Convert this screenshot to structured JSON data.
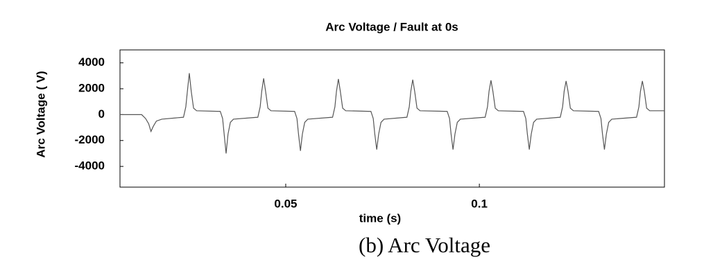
{
  "chart_data": {
    "type": "line",
    "title": "Arc Voltage / Fault at 0s",
    "xlabel": "time (s)",
    "ylabel": "Arc Voltage ( V)",
    "x": [
      0.0072,
      0.0128,
      0.0138,
      0.0146,
      0.0152,
      0.0158,
      0.0166,
      0.018,
      0.0236,
      0.0242,
      0.0246,
      0.0251,
      0.0256,
      0.0262,
      0.027,
      0.0331,
      0.0337,
      0.0341,
      0.0346,
      0.0351,
      0.0357,
      0.0365,
      0.0428,
      0.0434,
      0.0438,
      0.0443,
      0.0448,
      0.0454,
      0.0462,
      0.0523,
      0.0529,
      0.0533,
      0.0538,
      0.0543,
      0.0549,
      0.0557,
      0.0621,
      0.0627,
      0.0631,
      0.0636,
      0.0641,
      0.0647,
      0.0655,
      0.072,
      0.0726,
      0.073,
      0.0735,
      0.074,
      0.0746,
      0.0754,
      0.0813,
      0.0819,
      0.0823,
      0.0828,
      0.0833,
      0.0839,
      0.0847,
      0.0917,
      0.0923,
      0.0927,
      0.0932,
      0.0937,
      0.0943,
      0.0951,
      0.1015,
      0.1021,
      0.1025,
      0.103,
      0.1035,
      0.1041,
      0.1049,
      0.1114,
      0.112,
      0.1124,
      0.1129,
      0.1134,
      0.114,
      0.1148,
      0.1209,
      0.1215,
      0.1219,
      0.1224,
      0.1229,
      0.1235,
      0.1243,
      0.1308,
      0.1314,
      0.1318,
      0.1323,
      0.1328,
      0.1334,
      0.1342,
      0.1406,
      0.1412,
      0.1416,
      0.1421,
      0.1426,
      0.1432,
      0.144,
      0.1478
    ],
    "values": [
      0,
      0,
      -300,
      -700,
      -1300,
      -900,
      -500,
      -350,
      -200,
      600,
      1800,
      3200,
      1800,
      500,
      300,
      250,
      -300,
      -1500,
      -3000,
      -1500,
      -600,
      -350,
      -200,
      600,
      1800,
      2800,
      1800,
      500,
      300,
      250,
      -300,
      -1500,
      -2800,
      -1500,
      -600,
      -350,
      -200,
      600,
      1800,
      2750,
      1800,
      500,
      300,
      250,
      -300,
      -1500,
      -2700,
      -1500,
      -600,
      -350,
      -200,
      600,
      1800,
      2700,
      1800,
      500,
      300,
      250,
      -300,
      -1500,
      -2700,
      -1500,
      -600,
      -350,
      -200,
      600,
      1800,
      2650,
      1800,
      500,
      300,
      250,
      -300,
      -1500,
      -2700,
      -1500,
      -600,
      -350,
      -200,
      600,
      1800,
      2600,
      1800,
      500,
      300,
      250,
      -300,
      -1500,
      -2700,
      -1500,
      -600,
      -350,
      -200,
      600,
      1800,
      2600,
      1800,
      500,
      300,
      300
    ],
    "color": "#555555",
    "xlim": [
      0.0072,
      0.1478
    ],
    "xticks": [
      0.05,
      0.1
    ],
    "ylim": [
      -5600,
      5000
    ],
    "yticks": [
      -4000,
      -2000,
      0,
      2000,
      4000
    ]
  },
  "caption": "(b) Arc Voltage"
}
